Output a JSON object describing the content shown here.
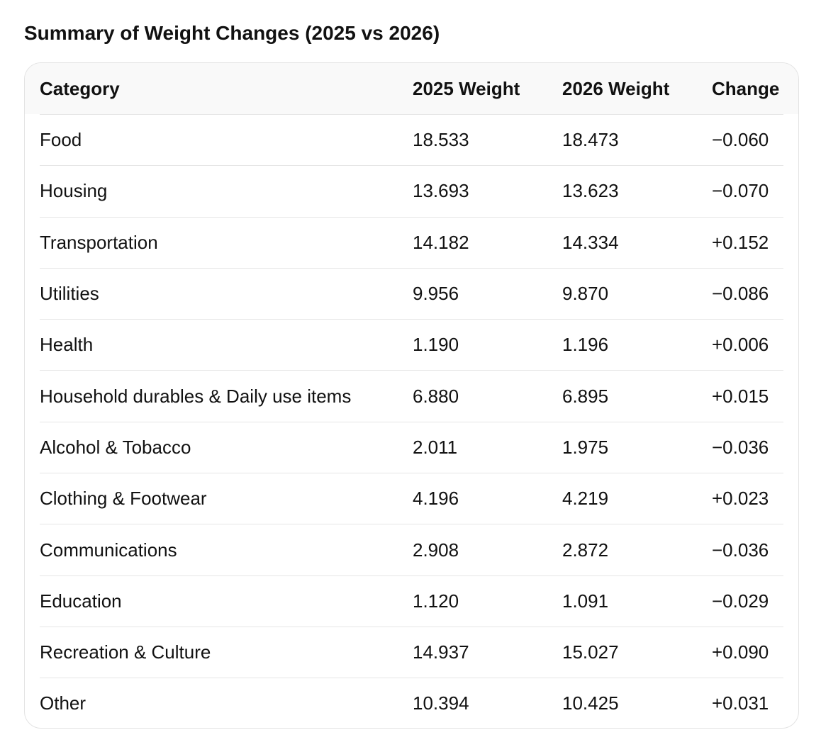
{
  "title": "Summary of Weight Changes (2025 vs 2026)",
  "table": {
    "headers": [
      "Category",
      "2025 Weight",
      "2026 Weight",
      "Change"
    ],
    "rows": [
      [
        "Food",
        "18.533",
        "18.473",
        "−0.060"
      ],
      [
        "Housing",
        "13.693",
        "13.623",
        "−0.070"
      ],
      [
        "Transportation",
        "14.182",
        "14.334",
        "+0.152"
      ],
      [
        "Utilities",
        "9.956",
        "9.870",
        "−0.086"
      ],
      [
        "Health",
        "1.190",
        "1.196",
        "+0.006"
      ],
      [
        "Household durables & Daily use items",
        "6.880",
        "6.895",
        "+0.015"
      ],
      [
        "Alcohol & Tobacco",
        "2.011",
        "1.975",
        "−0.036"
      ],
      [
        "Clothing & Footwear",
        "4.196",
        "4.219",
        "+0.023"
      ],
      [
        "Communications",
        "2.908",
        "2.872",
        "−0.036"
      ],
      [
        "Education",
        "1.120",
        "1.091",
        "−0.029"
      ],
      [
        "Recreation & Culture",
        "14.937",
        "15.027",
        "+0.090"
      ],
      [
        "Other",
        "10.394",
        "10.425",
        "+0.031"
      ]
    ]
  }
}
